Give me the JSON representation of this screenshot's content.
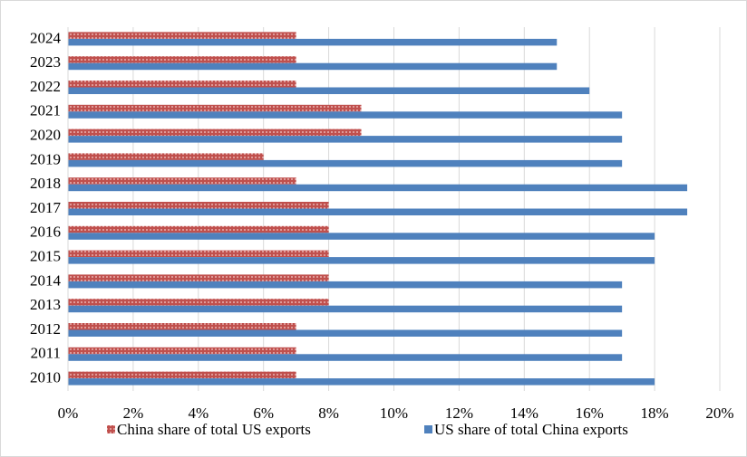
{
  "chart_data": {
    "type": "bar",
    "orientation": "horizontal",
    "categories": [
      "2024",
      "2023",
      "2022",
      "2021",
      "2020",
      "2019",
      "2018",
      "2017",
      "2016",
      "2015",
      "2014",
      "2013",
      "2012",
      "2011",
      "2010"
    ],
    "series": [
      {
        "name": "China share of total US exports",
        "color": "#c0504d",
        "values": [
          7,
          7,
          7,
          9,
          9,
          6,
          7,
          8,
          8,
          8,
          8,
          8,
          7,
          7,
          7
        ]
      },
      {
        "name": "US share of total China exports",
        "color": "#4f81bd",
        "values": [
          15,
          15,
          16,
          17,
          17,
          17,
          19,
          19,
          18,
          18,
          17,
          17,
          17,
          17,
          18
        ]
      }
    ],
    "xlim": [
      0,
      20
    ],
    "xticks": [
      {
        "value": 0,
        "label": "0%"
      },
      {
        "value": 2,
        "label": "2%"
      },
      {
        "value": 4,
        "label": "4%"
      },
      {
        "value": 6,
        "label": "6%"
      },
      {
        "value": 8,
        "label": "8%"
      },
      {
        "value": 10,
        "label": "10%"
      },
      {
        "value": 12,
        "label": "12%"
      },
      {
        "value": 14,
        "label": "14%"
      },
      {
        "value": 16,
        "label": "16%"
      },
      {
        "value": 18,
        "label": "18%"
      },
      {
        "value": 20,
        "label": "20%"
      }
    ],
    "grid": true,
    "legend": "bottom"
  }
}
